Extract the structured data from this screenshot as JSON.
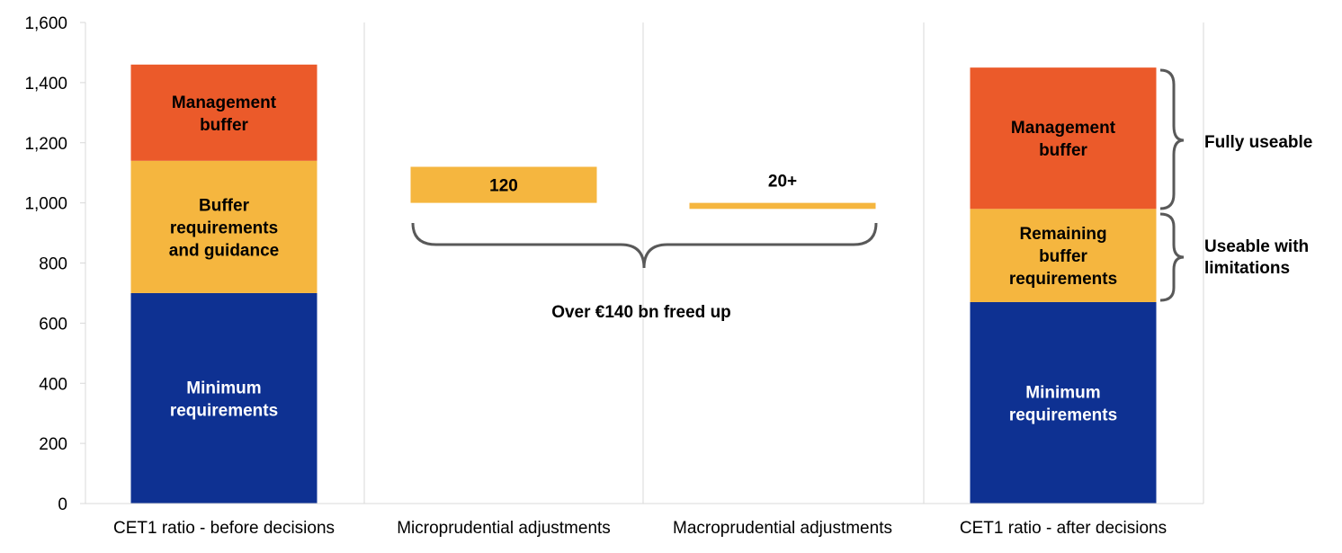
{
  "chart_data": {
    "type": "bar",
    "subtype": "stacked-waterfall",
    "title": "",
    "xlabel": "",
    "ylabel": "",
    "ylim": [
      0,
      1600
    ],
    "yticks": [
      0,
      200,
      400,
      600,
      800,
      1000,
      1200,
      1400,
      1600
    ],
    "ytick_labels": [
      "0",
      "200",
      "400",
      "600",
      "800",
      "1,000",
      "1,200",
      "1,400",
      "1,600"
    ],
    "grid": {
      "vertical_category_separators": true,
      "horizontal": false
    },
    "legend": "none",
    "colors": {
      "minimum": "#0e3192",
      "buffer": "#f5b63f",
      "management": "#eb5a2a",
      "grid": "#d9d9d9",
      "brace": "#595959"
    },
    "categories": [
      "CET1 ratio - before decisions",
      "Microprudential adjustments",
      "Macroprudential adjustments",
      "CET1 ratio - after decisions"
    ],
    "bars": [
      {
        "category": "CET1 ratio - before decisions",
        "segments": [
          {
            "label_lines": [
              "Minimum",
              "requirements"
            ],
            "bottom": 0,
            "top": 700,
            "color_key": "minimum",
            "text_color": "#ffffff"
          },
          {
            "label_lines": [
              "Buffer",
              "requirements",
              "and guidance"
            ],
            "bottom": 700,
            "top": 1140,
            "color_key": "buffer",
            "text_color": "#000000"
          },
          {
            "label_lines": [
              "Management",
              "buffer"
            ],
            "bottom": 1140,
            "top": 1460,
            "color_key": "management",
            "text_color": "#000000"
          }
        ]
      },
      {
        "category": "Microprudential adjustments",
        "segments": [
          {
            "label_lines": [
              "120"
            ],
            "bottom": 1000,
            "top": 1120,
            "color_key": "buffer",
            "text_color": "#000000",
            "label_pos": "inside"
          }
        ]
      },
      {
        "category": "Macroprudential adjustments",
        "segments": [
          {
            "label_lines": [
              "20+"
            ],
            "bottom": 980,
            "top": 1000,
            "color_key": "buffer",
            "text_color": "#000000",
            "label_pos": "above"
          }
        ]
      },
      {
        "category": "CET1 ratio - after decisions",
        "segments": [
          {
            "label_lines": [
              "Minimum",
              "requirements"
            ],
            "bottom": 0,
            "top": 670,
            "color_key": "minimum",
            "text_color": "#ffffff"
          },
          {
            "label_lines": [
              "Remaining",
              "buffer",
              "requirements"
            ],
            "bottom": 670,
            "top": 980,
            "color_key": "buffer",
            "text_color": "#000000"
          },
          {
            "label_lines": [
              "Management",
              "buffer"
            ],
            "bottom": 980,
            "top": 1450,
            "color_key": "management",
            "text_color": "#000000"
          }
        ]
      }
    ],
    "annotations": {
      "freed_up": "Over €140 bn freed up",
      "fully_useable": "Fully useable",
      "useable_with_limitations": [
        "Useable with",
        "limitations"
      ]
    }
  }
}
